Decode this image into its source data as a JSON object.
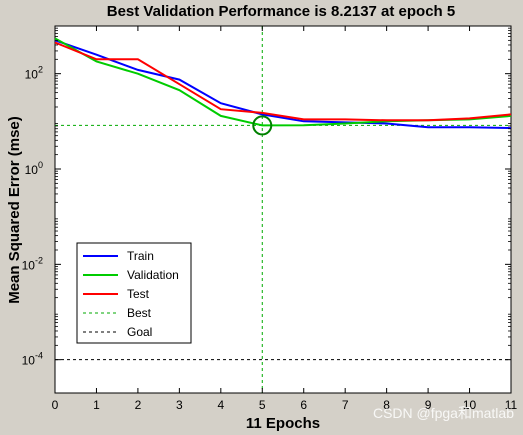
{
  "watermark": "CSDN @fpga和matlab",
  "chart_data": {
    "type": "line",
    "title": "Best Validation Performance is 8.2137 at epoch 5",
    "xlabel": "11 Epochs",
    "ylabel": "Mean Squared Error  (mse)",
    "yscale": "log",
    "xlim": [
      0,
      11
    ],
    "ylim": [
      2e-05,
      1000
    ],
    "grid": false,
    "legend_position": "lower-left",
    "xticks": [
      0,
      1,
      2,
      3,
      4,
      5,
      6,
      7,
      8,
      9,
      10,
      11
    ],
    "xtick_labels": [
      "0",
      "1",
      "2",
      "3",
      "4",
      "5",
      "6",
      "7",
      "8",
      "9",
      "10",
      "11"
    ],
    "yticks": [
      {
        "value": 100,
        "base": "10",
        "exp": "2"
      },
      {
        "value": 1,
        "base": "10",
        "exp": "0"
      },
      {
        "value": 0.01,
        "base": "10",
        "exp": "-2"
      },
      {
        "value": 0.0001,
        "base": "10",
        "exp": "-4"
      }
    ],
    "series": [
      {
        "name": "Train",
        "color": "#0000ff",
        "style": "solid",
        "x": [
          0,
          1,
          2,
          3,
          4,
          5,
          6,
          7,
          8,
          9,
          10,
          11
        ],
        "y": [
          500,
          250,
          120,
          75,
          24,
          14,
          10,
          9.5,
          9,
          7.5,
          7.5,
          7.2
        ]
      },
      {
        "name": "Validation",
        "color": "#00cc00",
        "style": "solid",
        "x": [
          0,
          1,
          2,
          3,
          4,
          5,
          6,
          7,
          8,
          9,
          10,
          11
        ],
        "y": [
          550,
          180,
          100,
          45,
          13,
          8.2137,
          8.3,
          9,
          10,
          10.5,
          11,
          13
        ]
      },
      {
        "name": "Test",
        "color": "#ff0000",
        "style": "solid",
        "x": [
          0,
          1,
          2,
          3,
          4,
          5,
          6,
          7,
          8,
          9,
          10,
          11
        ],
        "y": [
          450,
          200,
          200,
          60,
          18,
          15,
          11,
          11,
          10.5,
          10.5,
          11.5,
          14
        ]
      },
      {
        "name": "Best",
        "color": "#00aa00",
        "style": "dashed",
        "best_epoch": 5,
        "best_value": 8.2137
      },
      {
        "name": "Goal",
        "color": "#000000",
        "style": "dashed",
        "goal_value": 0.0001
      }
    ]
  }
}
